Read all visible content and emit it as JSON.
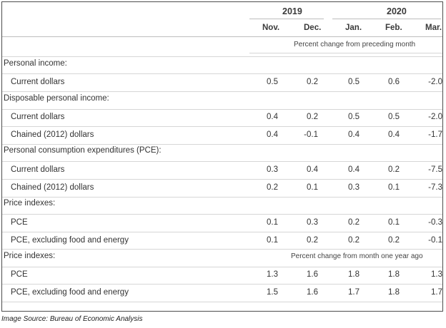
{
  "header": {
    "years": [
      "2019",
      "2020"
    ],
    "months": [
      "Nov.",
      "Dec.",
      "Jan.",
      "Feb.",
      "Mar."
    ],
    "subheader_1": "Percent change from preceding month",
    "subheader_2": "Percent change from month one year ago"
  },
  "rows": [
    {
      "type": "section",
      "label": "Personal income:"
    },
    {
      "type": "data",
      "label": "Current dollars",
      "values": [
        "0.5",
        "0.2",
        "0.5",
        "0.6",
        "-2.0"
      ]
    },
    {
      "type": "section",
      "label": "Disposable personal income:"
    },
    {
      "type": "data",
      "label": "Current dollars",
      "values": [
        "0.4",
        "0.2",
        "0.5",
        "0.5",
        "-2.0"
      ]
    },
    {
      "type": "data",
      "label": "Chained (2012) dollars",
      "values": [
        "0.4",
        "-0.1",
        "0.4",
        "0.4",
        "-1.7"
      ]
    },
    {
      "type": "section",
      "label": "Personal consumption expenditures (PCE):"
    },
    {
      "type": "data",
      "label": "Current dollars",
      "values": [
        "0.3",
        "0.4",
        "0.4",
        "0.2",
        "-7.5"
      ]
    },
    {
      "type": "data",
      "label": "Chained (2012) dollars",
      "values": [
        "0.2",
        "0.1",
        "0.3",
        "0.1",
        "-7.3"
      ]
    },
    {
      "type": "section",
      "label": "Price indexes:"
    },
    {
      "type": "data",
      "label": "PCE",
      "values": [
        "0.1",
        "0.3",
        "0.2",
        "0.1",
        "-0.3"
      ]
    },
    {
      "type": "data",
      "label": "PCE, excluding food and energy",
      "values": [
        "0.1",
        "0.2",
        "0.2",
        "0.2",
        "-0.1"
      ]
    },
    {
      "type": "section",
      "label": "Price indexes:"
    },
    {
      "type": "data",
      "label": "PCE",
      "values": [
        "1.3",
        "1.6",
        "1.8",
        "1.8",
        "1.3"
      ]
    },
    {
      "type": "data",
      "label": "PCE, excluding food and energy",
      "values": [
        "1.5",
        "1.6",
        "1.7",
        "1.8",
        "1.7"
      ]
    }
  ],
  "caption": "Image Source: Bureau of Economic Analysis"
}
